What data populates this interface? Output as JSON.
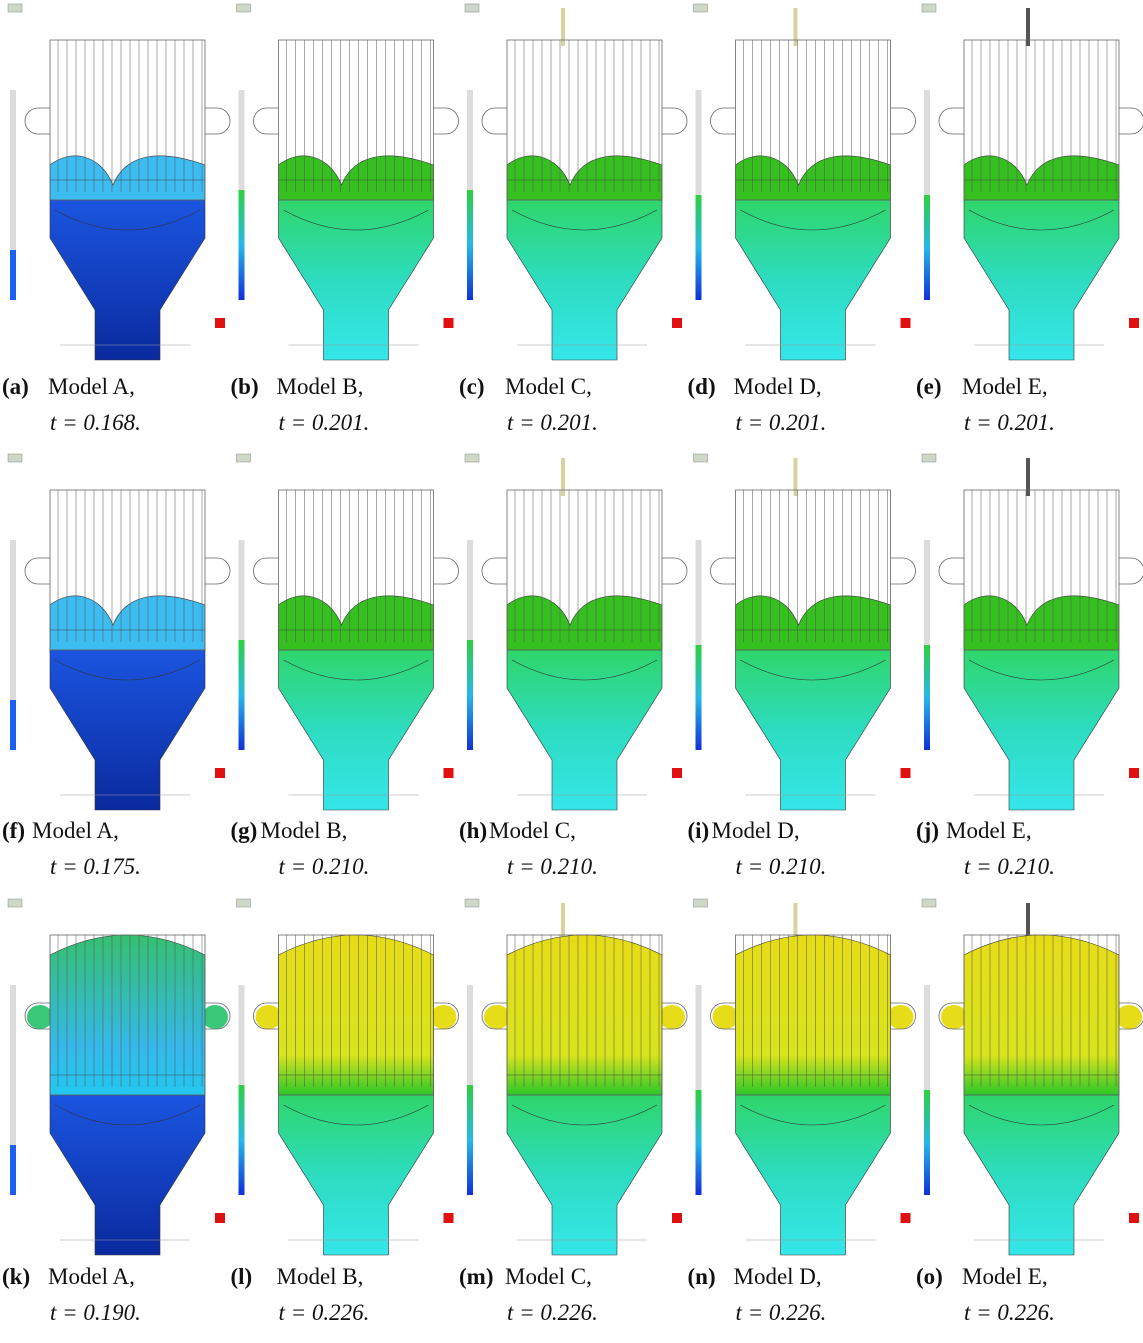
{
  "panels": [
    {
      "label": "(a)",
      "model": "Model A,",
      "time": "t = 0.168."
    },
    {
      "label": "(b)",
      "model": "Model B,",
      "time": "t = 0.201."
    },
    {
      "label": "(c)",
      "model": "Model C,",
      "time": "t = 0.201."
    },
    {
      "label": "(d)",
      "model": "Model D,",
      "time": "t = 0.201."
    },
    {
      "label": "(e)",
      "model": "Model E,",
      "time": "t = 0.201."
    },
    {
      "label": "(f)",
      "model": "Model A,",
      "time": "t = 0.175."
    },
    {
      "label": "(g)",
      "model": "Model B,",
      "time": "t = 0.210."
    },
    {
      "label": "(h)",
      "model": "Model C,",
      "time": "t = 0.210."
    },
    {
      "label": "(i)",
      "model": "Model D,",
      "time": "t = 0.210."
    },
    {
      "label": "(j)",
      "model": "Model E,",
      "time": "t = 0.210."
    },
    {
      "label": "(k)",
      "model": "Model A,",
      "time": "t = 0.190."
    },
    {
      "label": "(l)",
      "model": "Model B,",
      "time": "t = 0.226."
    },
    {
      "label": "(m)",
      "model": "Model C,",
      "time": "t = 0.226."
    },
    {
      "label": "(n)",
      "model": "Model D,",
      "time": "t = 0.226."
    },
    {
      "label": "(o)",
      "model": "Model E,",
      "time": "t = 0.226."
    }
  ]
}
